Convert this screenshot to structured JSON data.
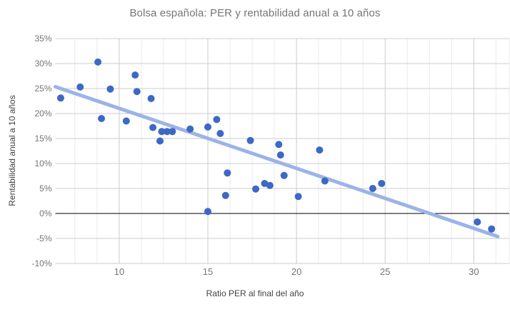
{
  "chart": {
    "title": "Bolsa española: PER y rentabilidad anual a 10 años",
    "x_axis_title": "Ratio PER al final del año",
    "y_axis_title": "Rentabilidad anual a 10 años"
  },
  "chart_data": {
    "type": "scatter",
    "title": "Bolsa española: PER y rentabilidad anual a 10 años",
    "xlabel": "Ratio PER al final del año",
    "ylabel": "Rentabilidad anual a 10 años",
    "xlim": [
      6.4,
      32.0
    ],
    "ylim": [
      -10,
      35
    ],
    "x_ticks": [
      10,
      15,
      20,
      25,
      30
    ],
    "x_minor_step": 1.25,
    "y_ticks": [
      35,
      30,
      25,
      20,
      15,
      10,
      5,
      0,
      -5,
      -10
    ],
    "y_tick_suffix": "%",
    "grid": true,
    "legend_position": "none",
    "points": [
      [
        6.7,
        23.1
      ],
      [
        7.8,
        25.3
      ],
      [
        8.8,
        30.3
      ],
      [
        9.0,
        19.0
      ],
      [
        9.5,
        24.9
      ],
      [
        10.4,
        18.5
      ],
      [
        10.9,
        27.7
      ],
      [
        11.0,
        24.4
      ],
      [
        11.8,
        23.0
      ],
      [
        11.9,
        17.2
      ],
      [
        12.3,
        14.5
      ],
      [
        12.4,
        16.4
      ],
      [
        12.7,
        16.4
      ],
      [
        13.0,
        16.4
      ],
      [
        14.0,
        16.9
      ],
      [
        15.0,
        17.3
      ],
      [
        15.0,
        0.4
      ],
      [
        15.5,
        18.8
      ],
      [
        15.7,
        16.0
      ],
      [
        16.0,
        3.6
      ],
      [
        16.1,
        8.1
      ],
      [
        17.4,
        14.6
      ],
      [
        17.7,
        4.9
      ],
      [
        18.2,
        6.0
      ],
      [
        18.5,
        5.6
      ],
      [
        19.0,
        13.8
      ],
      [
        19.1,
        11.7
      ],
      [
        19.3,
        7.6
      ],
      [
        20.1,
        3.4
      ],
      [
        21.3,
        12.7
      ],
      [
        21.6,
        6.5
      ],
      [
        24.3,
        5.0
      ],
      [
        24.8,
        6.0
      ],
      [
        30.2,
        -1.7
      ],
      [
        31.0,
        -3.1
      ]
    ],
    "trendline": {
      "x1": 6.4,
      "y1": 25.35,
      "x2": 31.35,
      "y2": -4.6
    },
    "colors": {
      "point": "#3d68c5",
      "trendline": "#9bb3e8",
      "grid_major": "#cccccc",
      "grid_minor": "#ebebeb",
      "zero_line": "#000000",
      "tick_label": "#757575",
      "axis_title": "#424242",
      "title": "#757575",
      "background": "#ffffff"
    }
  }
}
